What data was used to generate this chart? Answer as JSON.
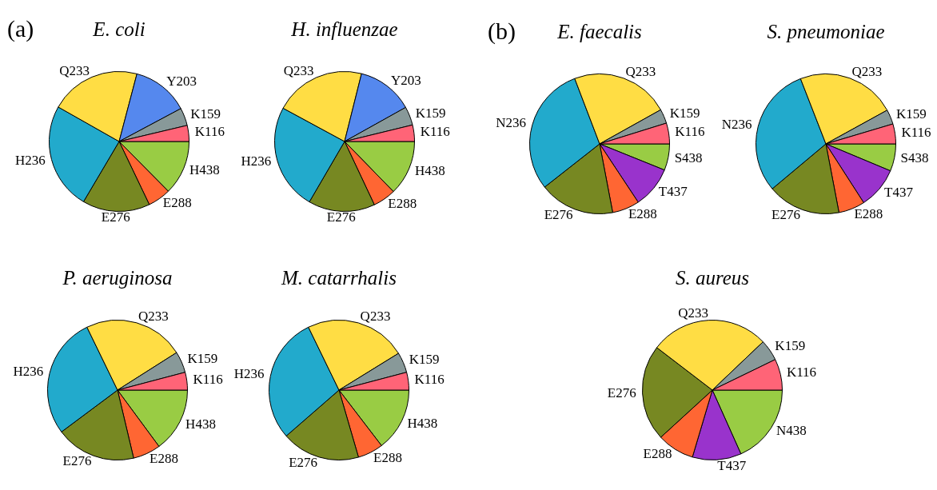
{
  "chart_data": [
    {
      "type": "pie",
      "title": "E. coli",
      "annotations": [
        "(a)"
      ],
      "categories": [
        "K116",
        "K159",
        "Y203",
        "Q233",
        "H236",
        "E276",
        "E288",
        "H438"
      ],
      "values": [
        3.7,
        4.1,
        13.1,
        20.9,
        24.7,
        15.6,
        5.3,
        12.6
      ],
      "colors": [
        "#ff6477",
        "#889999",
        "#5588ee",
        "#ffdd44",
        "#22aacc",
        "#778822",
        "#ff6633",
        "#99cc44"
      ]
    },
    {
      "type": "pie",
      "title": "H. influenzae",
      "categories": [
        "K116",
        "K159",
        "Y203",
        "Q233",
        "H236",
        "E276",
        "E288",
        "H438"
      ],
      "values": [
        3.8,
        4.3,
        13.0,
        21.0,
        24.5,
        15.4,
        5.3,
        12.7
      ],
      "colors": [
        "#ff6477",
        "#889999",
        "#5588ee",
        "#ffdd44",
        "#22aacc",
        "#778822",
        "#ff6633",
        "#99cc44"
      ]
    },
    {
      "type": "pie",
      "title": "P. aeruginosa",
      "categories": [
        "K116",
        "K159",
        "Q233",
        "H236",
        "E276",
        "E288",
        "H438"
      ],
      "values": [
        4.1,
        4.9,
        23.2,
        28.0,
        18.5,
        6.4,
        14.9
      ],
      "colors": [
        "#ff6477",
        "#889999",
        "#ffdd44",
        "#22aacc",
        "#778822",
        "#ff6633",
        "#99cc44"
      ]
    },
    {
      "type": "pie",
      "title": "M. catarrhalis",
      "categories": [
        "K116",
        "K159",
        "Q233",
        "H236",
        "E276",
        "E288",
        "H438"
      ],
      "values": [
        4.1,
        4.7,
        23.4,
        29.2,
        18.1,
        5.9,
        14.6
      ],
      "colors": [
        "#ff6477",
        "#889999",
        "#ffdd44",
        "#22aacc",
        "#778822",
        "#ff6633",
        "#99cc44"
      ]
    },
    {
      "type": "pie",
      "title": "E. faecalis",
      "annotations": [
        "(b)"
      ],
      "categories": [
        "K116",
        "K159",
        "Q233",
        "N236",
        "E276",
        "E288",
        "T437",
        "S438"
      ],
      "values": [
        4.8,
        3.3,
        22.7,
        29.8,
        17.4,
        6.3,
        9.6,
        6.1
      ],
      "colors": [
        "#ff6477",
        "#889999",
        "#ffdd44",
        "#22aacc",
        "#778822",
        "#ff6633",
        "#9933cc",
        "#99cc44"
      ]
    },
    {
      "type": "pie",
      "title": "S. pneumoniae",
      "categories": [
        "K116",
        "K159",
        "Q233",
        "N236",
        "E276",
        "E288",
        "T437",
        "S438"
      ],
      "values": [
        4.6,
        3.4,
        22.9,
        30.2,
        16.9,
        6.1,
        9.6,
        6.3
      ],
      "colors": [
        "#ff6477",
        "#889999",
        "#ffdd44",
        "#22aacc",
        "#778822",
        "#ff6633",
        "#9933cc",
        "#99cc44"
      ]
    },
    {
      "type": "pie",
      "title": "S. aureus",
      "categories": [
        "K116",
        "K159",
        "Q233",
        "E276",
        "E288",
        "T437",
        "N438"
      ],
      "values": [
        7.2,
        4.9,
        27.5,
        22.2,
        8.6,
        11.3,
        18.3
      ],
      "colors": [
        "#ff6477",
        "#889999",
        "#ffdd44",
        "#778822",
        "#ff6633",
        "#9933cc",
        "#99cc44"
      ]
    }
  ]
}
